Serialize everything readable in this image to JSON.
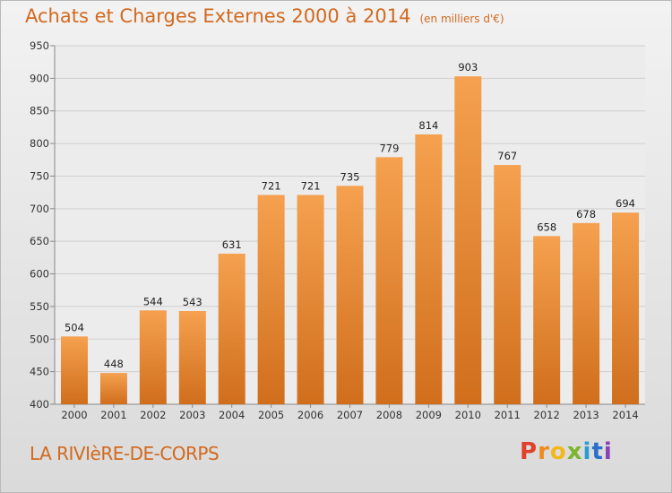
{
  "title": "Achats et Charges Externes 2000 à 2014",
  "subtitle": "(en milliers d'€)",
  "place": "LA RIVIèRE-DE-CORPS",
  "logo": "Proxiti",
  "colors": {
    "title": "#d2691e",
    "bar_top": "#f5a14f",
    "bar_bottom": "#d06e1c"
  },
  "chart_data": {
    "type": "bar",
    "categories": [
      "2000",
      "2001",
      "2002",
      "2003",
      "2004",
      "2005",
      "2006",
      "2007",
      "2008",
      "2009",
      "2010",
      "2011",
      "2012",
      "2013",
      "2014"
    ],
    "values": [
      504,
      448,
      544,
      543,
      631,
      721,
      721,
      735,
      779,
      814,
      903,
      767,
      658,
      678,
      694
    ],
    "ylim": [
      400,
      950
    ],
    "yticks": [
      400,
      450,
      500,
      550,
      600,
      650,
      700,
      750,
      800,
      850,
      900,
      950
    ],
    "grid": true
  }
}
